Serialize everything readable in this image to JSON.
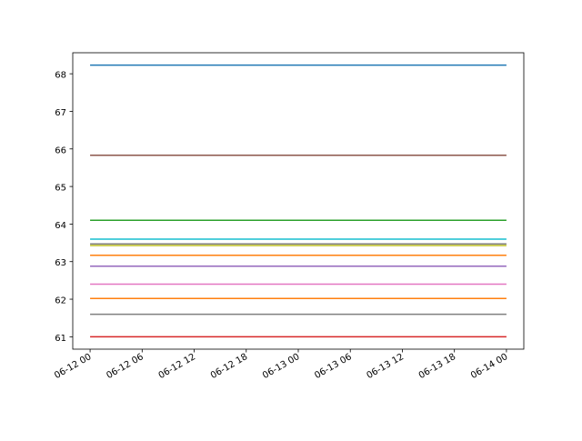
{
  "chart_data": {
    "type": "line",
    "title": "",
    "xlabel": "",
    "ylabel": "",
    "grid": false,
    "xlim": [
      "2017-06-11T22:00",
      "2017-06-14T02:00"
    ],
    "ylim": [
      60.67,
      68.56
    ],
    "x_ticks": [
      {
        "t": "2017-06-12T00:00",
        "label": "06-12 00"
      },
      {
        "t": "2017-06-12T06:00",
        "label": "06-12 06"
      },
      {
        "t": "2017-06-12T12:00",
        "label": "06-12 12"
      },
      {
        "t": "2017-06-12T18:00",
        "label": "06-12 18"
      },
      {
        "t": "2017-06-13T00:00",
        "label": "06-13 00"
      },
      {
        "t": "2017-06-13T06:00",
        "label": "06-13 06"
      },
      {
        "t": "2017-06-13T12:00",
        "label": "06-13 12"
      },
      {
        "t": "2017-06-13T18:00",
        "label": "06-13 18"
      },
      {
        "t": "2017-06-14T00:00",
        "label": "06-14 00"
      }
    ],
    "y_ticks": [
      61,
      62,
      63,
      64,
      65,
      66,
      67,
      68
    ],
    "series": [
      {
        "color": "#1f77b4",
        "x": [
          "2017-06-12T00:00",
          "2017-06-14T00:00"
        ],
        "y": [
          68.23,
          68.23
        ]
      },
      {
        "color": "#8c564b",
        "x": [
          "2017-06-12T00:00",
          "2017-06-14T00:00"
        ],
        "y": [
          65.83,
          65.83
        ]
      },
      {
        "color": "#2ca02c",
        "x": [
          "2017-06-12T00:00",
          "2017-06-14T00:00"
        ],
        "y": [
          64.1,
          64.1
        ]
      },
      {
        "color": "#17becf",
        "x": [
          "2017-06-12T00:00",
          "2017-06-14T00:00"
        ],
        "y": [
          63.6,
          63.6
        ]
      },
      {
        "color": "#7f7f7f",
        "x": [
          "2017-06-12T00:00",
          "2017-06-14T00:00"
        ],
        "y": [
          63.47,
          63.47
        ]
      },
      {
        "color": "#bcbd22",
        "x": [
          "2017-06-12T00:00",
          "2017-06-14T00:00"
        ],
        "y": [
          63.43,
          63.43
        ]
      },
      {
        "color": "#ff7f0e",
        "x": [
          "2017-06-12T00:00",
          "2017-06-14T00:00"
        ],
        "y": [
          63.17,
          63.17
        ]
      },
      {
        "color": "#9467bd",
        "x": [
          "2017-06-12T00:00",
          "2017-06-14T00:00"
        ],
        "y": [
          62.88,
          62.88
        ]
      },
      {
        "color": "#e377c2",
        "x": [
          "2017-06-12T00:00",
          "2017-06-14T00:00"
        ],
        "y": [
          62.4,
          62.4
        ]
      },
      {
        "color": "#ff7f0e",
        "x": [
          "2017-06-12T00:00",
          "2017-06-14T00:00"
        ],
        "y": [
          62.02,
          62.02
        ]
      },
      {
        "color": "#7f7f7f",
        "x": [
          "2017-06-12T00:00",
          "2017-06-14T00:00"
        ],
        "y": [
          61.6,
          61.6
        ]
      },
      {
        "color": "#d62728",
        "x": [
          "2017-06-12T00:00",
          "2017-06-14T00:00"
        ],
        "y": [
          61.0,
          61.0
        ]
      }
    ]
  }
}
